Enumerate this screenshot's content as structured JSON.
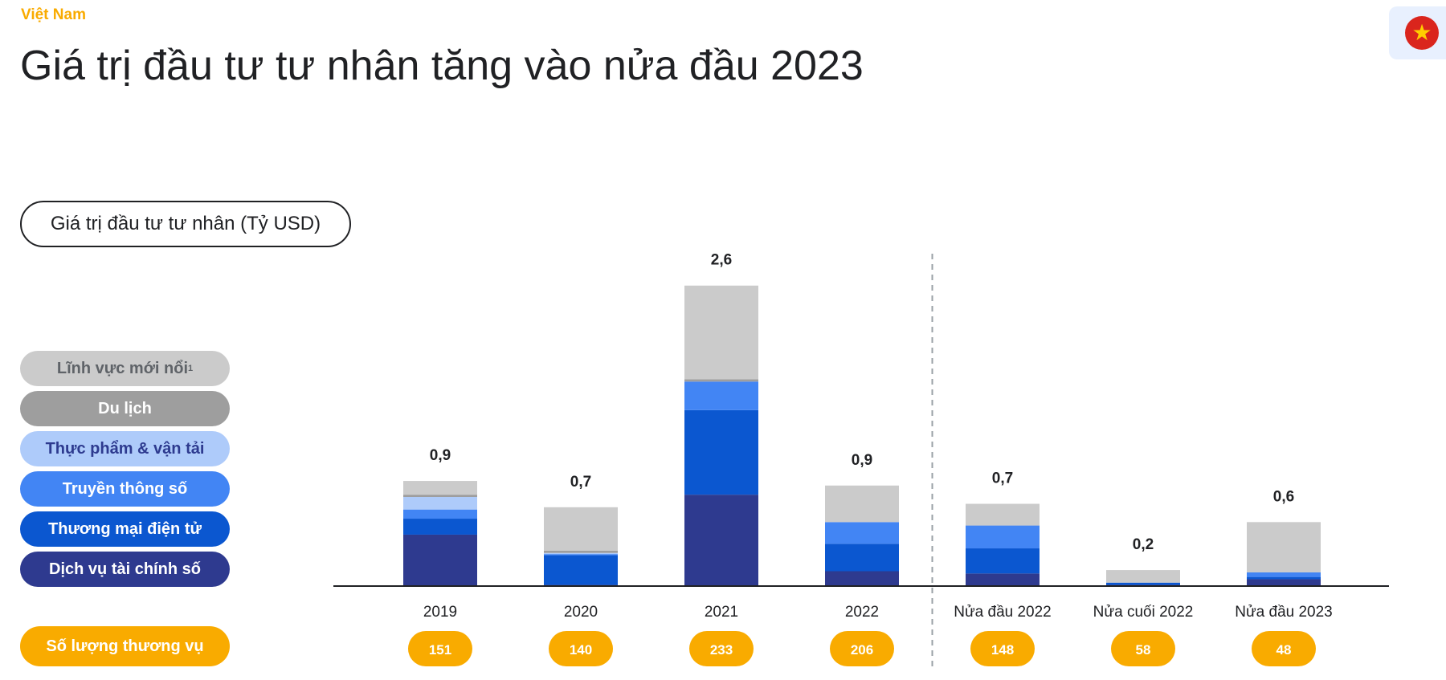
{
  "header": {
    "country": "Việt Nam",
    "title": "Giá trị đầu tư tư nhân tăng vào nửa đầu 2023"
  },
  "flag": {
    "icon": "vietnam-flag-icon",
    "star": "★"
  },
  "unit_label": "Giá trị đầu tư tư nhân (Tỷ USD)",
  "legend": [
    {
      "label": "Lĩnh vực mới nổi",
      "sup": "1",
      "color": "#cbcbcb",
      "text_color": "#5f6368"
    },
    {
      "label": "Du lịch",
      "sup": "",
      "color": "#9e9e9e",
      "text_color": "#ffffff"
    },
    {
      "label": "Thực phẩm & vận tải",
      "sup": "",
      "color": "#aecbfa",
      "text_color": "#2d3a8f"
    },
    {
      "label": "Truyền thông số",
      "sup": "",
      "color": "#4285f4",
      "text_color": "#ffffff"
    },
    {
      "label": "Thương mại điện tử",
      "sup": "",
      "color": "#0b57d0",
      "text_color": "#ffffff"
    },
    {
      "label": "Dịch vụ tài chính số",
      "sup": "",
      "color": "#2e3a8f",
      "text_color": "#ffffff"
    }
  ],
  "deal_count_label": "Số lượng thương vụ",
  "colors": {
    "accent": "#f9ab00",
    "axis": "#202124",
    "divider": "#9aa0a6"
  },
  "chart_data": {
    "type": "bar",
    "stacked": true,
    "title": "Giá trị đầu tư tư nhân tăng vào nửa đầu 2023",
    "ylabel": "Giá trị đầu tư tư nhân (Tỷ USD)",
    "ylim": [
      0,
      2.6
    ],
    "categories": [
      "2019",
      "2020",
      "2021",
      "2022",
      "Nửa đầu 2022",
      "Nửa cuối 2022",
      "Nửa đầu 2023"
    ],
    "totals": [
      "0,9",
      "0,7",
      "2,6",
      "0,9",
      "0,7",
      "0,2",
      "0,6"
    ],
    "deal_counts": [
      "151",
      "140",
      "233",
      "206",
      "148",
      "58",
      "48"
    ],
    "divider_after_index": 3,
    "series": [
      {
        "name": "Dịch vụ tài chính số",
        "color": "#2e3a8f",
        "values": [
          0.45,
          0.01,
          0.8,
          0.13,
          0.11,
          0.01,
          0.06
        ]
      },
      {
        "name": "Thương mại điện tử",
        "color": "#0b57d0",
        "values": [
          0.14,
          0.26,
          0.74,
          0.24,
          0.22,
          0.02,
          0.02
        ]
      },
      {
        "name": "Truyền thông số",
        "color": "#4285f4",
        "values": [
          0.08,
          0.01,
          0.25,
          0.19,
          0.2,
          0.0,
          0.04
        ]
      },
      {
        "name": "Thực phẩm & vận tải",
        "color": "#aecbfa",
        "values": [
          0.11,
          0.01,
          0.0,
          0.0,
          0.0,
          0.0,
          0.0
        ]
      },
      {
        "name": "Du lịch",
        "color": "#9e9e9e",
        "values": [
          0.02,
          0.02,
          0.02,
          0.0,
          0.0,
          0.0,
          0.0
        ]
      },
      {
        "name": "Lĩnh vực mới nổi",
        "color": "#cbcbcb",
        "values": [
          0.12,
          0.38,
          0.82,
          0.32,
          0.19,
          0.11,
          0.44
        ]
      }
    ]
  }
}
